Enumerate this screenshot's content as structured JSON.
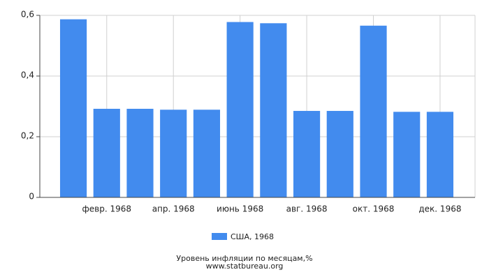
{
  "chart_data": {
    "type": "bar",
    "categories": [
      null,
      "февр. 1968",
      null,
      "апр. 1968",
      null,
      "июнь 1968",
      null,
      "авг. 1968",
      null,
      "окт. 1968",
      null,
      "дек. 1968"
    ],
    "series": [
      {
        "name": "США, 1968",
        "color": "#428bee",
        "values": [
          0.587,
          0.292,
          0.292,
          0.289,
          0.289,
          0.578,
          0.574,
          0.285,
          0.285,
          0.566,
          0.282,
          0.282
        ]
      }
    ],
    "ylim": [
      0,
      0.6
    ],
    "yticks": [
      0,
      {
        "value": 0.2,
        "label": "0,2"
      },
      {
        "value": 0.4,
        "label": "0,4"
      },
      {
        "value": 0.6,
        "label": "0,6"
      }
    ],
    "grid": true,
    "legend": "bottom",
    "title": "Уровень инфляции по месяцам,%",
    "source": "www.statbureau.org"
  }
}
